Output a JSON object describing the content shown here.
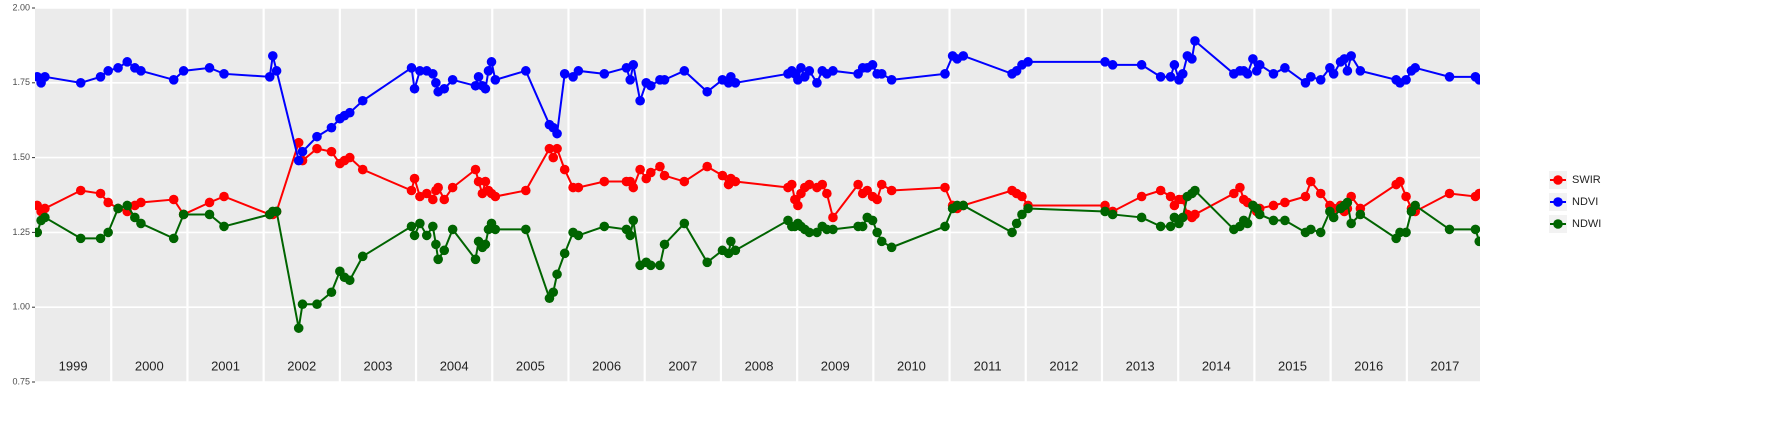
{
  "chart_data": {
    "type": "line",
    "x": [
      1999.03,
      1999.08,
      1999.13,
      1999.6,
      1999.86,
      1999.96,
      2000.09,
      2000.21,
      2000.31,
      2000.39,
      2000.82,
      2000.95,
      2001.29,
      2001.48,
      2002.08,
      2002.12,
      2002.17,
      2002.46,
      2002.51,
      2002.7,
      2002.89,
      2003.0,
      2003.06,
      2003.13,
      2003.3,
      2003.94,
      2003.98,
      2004.05,
      2004.14,
      2004.22,
      2004.26,
      2004.29,
      2004.37,
      2004.48,
      2004.78,
      2004.82,
      2004.87,
      2004.91,
      2004.95,
      2004.99,
      2005.04,
      2005.44,
      2005.75,
      2005.8,
      2005.85,
      2005.95,
      2006.06,
      2006.13,
      2006.47,
      2006.76,
      2006.81,
      2006.85,
      2006.94,
      2007.02,
      2007.08,
      2007.2,
      2007.26,
      2007.52,
      2007.82,
      2008.02,
      2008.1,
      2008.13,
      2008.19,
      2008.88,
      2008.93,
      2008.97,
      2009.01,
      2009.05,
      2009.1,
      2009.16,
      2009.26,
      2009.33,
      2009.39,
      2009.47,
      2009.8,
      2009.86,
      2009.92,
      2009.99,
      2010.05,
      2010.11,
      2010.24,
      2010.94,
      2011.04,
      2011.1,
      2011.18,
      2011.82,
      2011.88,
      2011.95,
      2012.03,
      2013.04,
      2013.14,
      2013.52,
      2013.77,
      2013.9,
      2013.95,
      2014.01,
      2014.06,
      2014.12,
      2014.18,
      2014.22,
      2014.73,
      2014.81,
      2014.86,
      2014.91,
      2014.98,
      2015.03,
      2015.07,
      2015.25,
      2015.4,
      2015.67,
      2015.74,
      2015.87,
      2015.99,
      2016.04,
      2016.13,
      2016.18,
      2016.22,
      2016.27,
      2016.39,
      2016.86,
      2016.91,
      2016.99,
      2017.06,
      2017.11,
      2017.56,
      2017.9,
      2017.95
    ],
    "series": [
      {
        "name": "SWIR",
        "color": "#ff0000",
        "values": [
          1.34,
          1.32,
          1.33,
          1.39,
          1.38,
          1.35,
          1.33,
          1.32,
          1.34,
          1.35,
          1.36,
          1.31,
          1.35,
          1.37,
          1.31,
          1.31,
          1.32,
          1.55,
          1.49,
          1.53,
          1.52,
          1.48,
          1.49,
          1.5,
          1.46,
          1.39,
          1.43,
          1.37,
          1.38,
          1.36,
          1.39,
          1.4,
          1.36,
          1.4,
          1.46,
          1.42,
          1.38,
          1.42,
          1.39,
          1.38,
          1.37,
          1.39,
          1.53,
          1.5,
          1.53,
          1.46,
          1.4,
          1.4,
          1.42,
          1.42,
          1.42,
          1.4,
          1.46,
          1.43,
          1.45,
          1.47,
          1.44,
          1.42,
          1.47,
          1.44,
          1.41,
          1.43,
          1.42,
          1.4,
          1.41,
          1.36,
          1.34,
          1.38,
          1.4,
          1.41,
          1.4,
          1.41,
          1.38,
          1.3,
          1.41,
          1.38,
          1.39,
          1.37,
          1.36,
          1.41,
          1.39,
          1.4,
          1.34,
          1.33,
          1.34,
          1.39,
          1.38,
          1.37,
          1.34,
          1.34,
          1.32,
          1.37,
          1.39,
          1.37,
          1.34,
          1.36,
          1.36,
          1.31,
          1.3,
          1.31,
          1.38,
          1.4,
          1.36,
          1.35,
          1.34,
          1.32,
          1.33,
          1.34,
          1.35,
          1.37,
          1.42,
          1.38,
          1.34,
          1.33,
          1.34,
          1.32,
          1.33,
          1.37,
          1.33,
          1.41,
          1.42,
          1.37,
          1.33,
          1.32,
          1.38,
          1.37,
          1.38
        ]
      },
      {
        "name": "NDVI",
        "color": "#0000ff",
        "values": [
          1.77,
          1.75,
          1.77,
          1.75,
          1.77,
          1.79,
          1.8,
          1.82,
          1.8,
          1.79,
          1.76,
          1.79,
          1.8,
          1.78,
          1.77,
          1.84,
          1.79,
          1.49,
          1.52,
          1.57,
          1.6,
          1.63,
          1.64,
          1.65,
          1.69,
          1.8,
          1.73,
          1.79,
          1.79,
          1.78,
          1.75,
          1.72,
          1.73,
          1.76,
          1.74,
          1.77,
          1.74,
          1.73,
          1.79,
          1.82,
          1.76,
          1.79,
          1.61,
          1.6,
          1.58,
          1.78,
          1.77,
          1.79,
          1.78,
          1.8,
          1.76,
          1.81,
          1.69,
          1.75,
          1.74,
          1.76,
          1.76,
          1.79,
          1.72,
          1.76,
          1.75,
          1.77,
          1.75,
          1.78,
          1.79,
          1.78,
          1.76,
          1.8,
          1.77,
          1.79,
          1.75,
          1.79,
          1.78,
          1.79,
          1.78,
          1.8,
          1.8,
          1.81,
          1.78,
          1.78,
          1.76,
          1.78,
          1.84,
          1.83,
          1.84,
          1.78,
          1.79,
          1.81,
          1.82,
          1.82,
          1.81,
          1.81,
          1.77,
          1.77,
          1.81,
          1.76,
          1.78,
          1.84,
          1.83,
          1.89,
          1.78,
          1.79,
          1.79,
          1.78,
          1.83,
          1.79,
          1.81,
          1.78,
          1.8,
          1.75,
          1.77,
          1.76,
          1.8,
          1.78,
          1.82,
          1.83,
          1.79,
          1.84,
          1.79,
          1.76,
          1.75,
          1.76,
          1.79,
          1.8,
          1.77,
          1.77,
          1.76
        ]
      },
      {
        "name": "NDWI",
        "color": "#006400",
        "values": [
          1.25,
          1.29,
          1.3,
          1.23,
          1.23,
          1.25,
          1.33,
          1.34,
          1.3,
          1.28,
          1.23,
          1.31,
          1.31,
          1.27,
          1.31,
          1.32,
          1.32,
          0.93,
          1.01,
          1.01,
          1.05,
          1.12,
          1.1,
          1.09,
          1.17,
          1.27,
          1.24,
          1.28,
          1.24,
          1.27,
          1.21,
          1.16,
          1.19,
          1.26,
          1.16,
          1.22,
          1.2,
          1.21,
          1.26,
          1.28,
          1.26,
          1.26,
          1.03,
          1.05,
          1.11,
          1.18,
          1.25,
          1.24,
          1.27,
          1.26,
          1.24,
          1.29,
          1.14,
          1.15,
          1.14,
          1.14,
          1.21,
          1.28,
          1.15,
          1.19,
          1.18,
          1.22,
          1.19,
          1.29,
          1.27,
          1.27,
          1.28,
          1.27,
          1.26,
          1.25,
          1.25,
          1.27,
          1.26,
          1.26,
          1.27,
          1.27,
          1.3,
          1.29,
          1.25,
          1.22,
          1.2,
          1.27,
          1.33,
          1.34,
          1.34,
          1.25,
          1.28,
          1.31,
          1.33,
          1.32,
          1.31,
          1.3,
          1.27,
          1.27,
          1.3,
          1.28,
          1.3,
          1.37,
          1.38,
          1.39,
          1.26,
          1.27,
          1.29,
          1.28,
          1.34,
          1.33,
          1.31,
          1.29,
          1.29,
          1.25,
          1.26,
          1.25,
          1.32,
          1.3,
          1.33,
          1.34,
          1.35,
          1.28,
          1.31,
          1.23,
          1.25,
          1.25,
          1.32,
          1.34,
          1.26,
          1.26,
          1.22
        ]
      }
    ],
    "xlim": [
      1999,
      2017.96
    ],
    "xticks": [
      {
        "value": 1999.5,
        "label": "1999"
      },
      {
        "value": 2000.5,
        "label": "2000"
      },
      {
        "value": 2001.5,
        "label": "2001"
      },
      {
        "value": 2002.5,
        "label": "2002"
      },
      {
        "value": 2003.5,
        "label": "2003"
      },
      {
        "value": 2004.5,
        "label": "2004"
      },
      {
        "value": 2005.5,
        "label": "2005"
      },
      {
        "value": 2006.5,
        "label": "2006"
      },
      {
        "value": 2007.5,
        "label": "2007"
      },
      {
        "value": 2008.5,
        "label": "2008"
      },
      {
        "value": 2009.5,
        "label": "2009"
      },
      {
        "value": 2010.5,
        "label": "2010"
      },
      {
        "value": 2011.5,
        "label": "2011"
      },
      {
        "value": 2012.5,
        "label": "2012"
      },
      {
        "value": 2013.5,
        "label": "2013"
      },
      {
        "value": 2014.5,
        "label": "2014"
      },
      {
        "value": 2015.5,
        "label": "2015"
      },
      {
        "value": 2016.5,
        "label": "2016"
      },
      {
        "value": 2017.5,
        "label": "2017"
      }
    ],
    "xgrid": [
      2000,
      2001,
      2002,
      2003,
      2004,
      2005,
      2006,
      2007,
      2008,
      2009,
      2010,
      2011,
      2012,
      2013,
      2014,
      2015,
      2016,
      2017
    ],
    "ylim": [
      0.75,
      2.0
    ],
    "yticks": [
      {
        "value": 0.75,
        "label": "0.75"
      },
      {
        "value": 1,
        "label": "1.00"
      },
      {
        "value": 1.25,
        "label": "1.25"
      },
      {
        "value": 1.5,
        "label": "1.50"
      },
      {
        "value": 1.75,
        "label": "1.75"
      },
      {
        "value": 2,
        "label": "2.00"
      }
    ],
    "grid": true,
    "legend": "right"
  }
}
